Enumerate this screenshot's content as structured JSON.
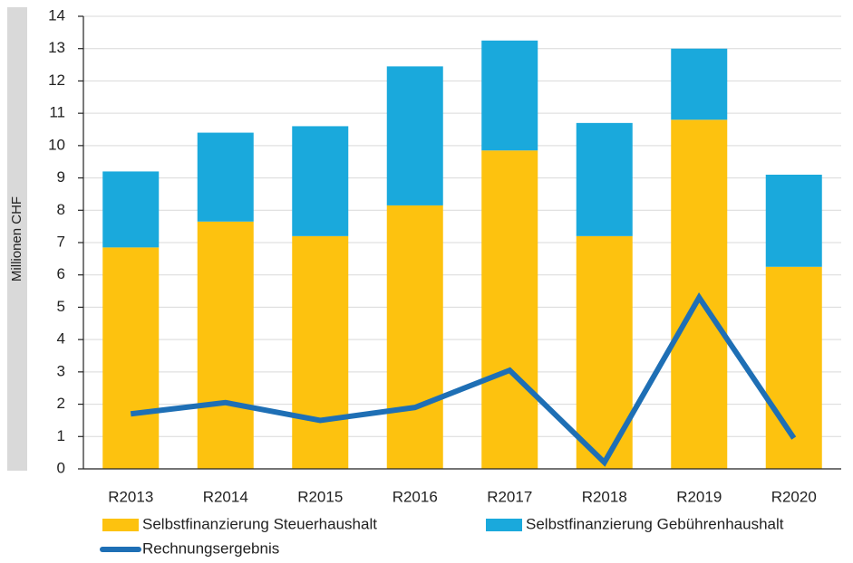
{
  "chart_data": {
    "type": "stacked-bar-line",
    "y_label": "Millionen CHF",
    "categories": [
      "R2013",
      "R2014",
      "R2015",
      "R2016",
      "R2017",
      "R2018",
      "R2019",
      "R2020"
    ],
    "series": [
      {
        "name": "Selbstfinanzierung Steuerhaushalt",
        "kind": "bar",
        "color": "#fdc20f",
        "values": [
          6.85,
          7.65,
          7.2,
          8.15,
          9.85,
          7.2,
          10.8,
          6.25
        ]
      },
      {
        "name": "Selbstfinanzierung Gebührenhaushalt",
        "kind": "bar",
        "color": "#1aa9dc",
        "values": [
          2.35,
          2.75,
          3.4,
          4.3,
          3.4,
          3.5,
          2.2,
          2.85
        ]
      },
      {
        "name": "Rechnungsergebnis",
        "kind": "line",
        "color": "#1e6fb5",
        "values": [
          1.7,
          2.05,
          1.5,
          1.9,
          3.05,
          0.2,
          5.3,
          0.95
        ]
      }
    ],
    "ylim": [
      0,
      14
    ],
    "yticks": [
      0,
      1,
      2,
      3,
      4,
      5,
      6,
      7,
      8,
      9,
      10,
      11,
      12,
      13,
      14
    ],
    "grid": true
  }
}
